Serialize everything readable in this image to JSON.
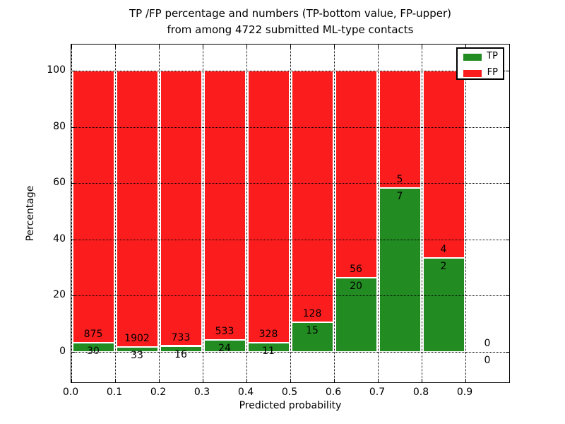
{
  "title_line1": "TP /FP percentage and numbers (TP-bottom value, FP-upper)",
  "title_line2": "from among 4722 submitted ML-type contacts",
  "axes": {
    "ylabel": "Percentage",
    "xlabel": "Predicted probability",
    "ytick_labels": [
      "0",
      "20",
      "40",
      "60",
      "80",
      "100"
    ],
    "xtick_labels": [
      "0.0",
      "0.1",
      "0.2",
      "0.3",
      "0.4",
      "0.5",
      "0.6",
      "0.7",
      "0.8",
      "0.9"
    ]
  },
  "legend": {
    "items": [
      {
        "label": "TP",
        "color": "#228b22"
      },
      {
        "label": "FP",
        "color": "#fb1d1d"
      }
    ],
    "position": "upper-right"
  },
  "chart_data": {
    "type": "bar",
    "stacked": true,
    "title": "TP /FP percentage and numbers (TP-bottom value, FP-upper)\nfrom among 4722 submitted ML-type contacts",
    "xlabel": "Predicted probability",
    "ylabel": "Percentage",
    "total_submitted": 4722,
    "bin_width": 0.1,
    "bin_starts": [
      0.0,
      0.1,
      0.2,
      0.3,
      0.4,
      0.5,
      0.6,
      0.7,
      0.8,
      0.9
    ],
    "categories": [
      "0.0-0.1",
      "0.1-0.2",
      "0.2-0.3",
      "0.3-0.4",
      "0.4-0.5",
      "0.5-0.6",
      "0.6-0.7",
      "0.7-0.8",
      "0.8-0.9",
      "0.9-1.0"
    ],
    "series": [
      {
        "name": "TP",
        "color": "#228b22",
        "counts": [
          30,
          33,
          16,
          24,
          11,
          15,
          20,
          7,
          2,
          0
        ]
      },
      {
        "name": "FP",
        "color": "#fb1d1d",
        "counts": [
          875,
          1902,
          733,
          533,
          328,
          128,
          56,
          5,
          4,
          0
        ]
      }
    ],
    "bars_show": "TP and FP as percent of bin total, stacked to 100%; bin 0.9-1.0 empty",
    "tp_percent_approx": [
      3.3,
      1.7,
      2.1,
      4.3,
      3.2,
      10.5,
      26.3,
      58.3,
      33.3,
      0
    ],
    "annotation_rule": "FP count printed above green segment top, TP count printed below it",
    "yticks": [
      0,
      20,
      40,
      60,
      80,
      100
    ],
    "xticks": [
      0.0,
      0.1,
      0.2,
      0.3,
      0.4,
      0.5,
      0.6,
      0.7,
      0.8,
      0.9
    ],
    "ylim": [
      -11,
      109.5
    ],
    "xlim": [
      0.0,
      1.0
    ],
    "grid": "dotted black, drawn above bars",
    "legend_position": "upper right"
  }
}
